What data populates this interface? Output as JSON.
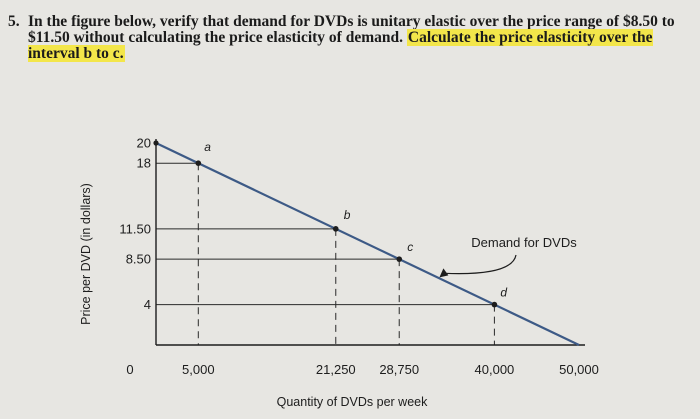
{
  "question": {
    "number": "5.",
    "before": "In the figure below, verify that demand for DVDs is unitary elastic over the price range of $8.50 to $11.50 without calculating the price elasticity of demand. ",
    "highlight": "Calculate the price elasticity over the interval b to c."
  },
  "chart_data": {
    "type": "line",
    "title": "",
    "xlabel": "Quantity of DVDs per week",
    "ylabel": "Price per DVD (in dollars)",
    "xlim": [
      0,
      50000
    ],
    "ylim": [
      0,
      20
    ],
    "x_ticks": [
      {
        "value": 0,
        "label": "0"
      },
      {
        "value": 5000,
        "label": "5,000"
      },
      {
        "value": 21250,
        "label": "21,250"
      },
      {
        "value": 28750,
        "label": "28,750"
      },
      {
        "value": 40000,
        "label": "40,000"
      },
      {
        "value": 50000,
        "label": "50,000"
      }
    ],
    "y_ticks": [
      {
        "value": 4,
        "label": "4"
      },
      {
        "value": 8.5,
        "label": "8.50"
      },
      {
        "value": 11.5,
        "label": "11.50"
      },
      {
        "value": 18,
        "label": "18"
      },
      {
        "value": 20,
        "label": "20"
      }
    ],
    "series": [
      {
        "name": "Demand for DVDs",
        "x": [
          0,
          50000
        ],
        "y": [
          20,
          0
        ]
      }
    ],
    "points": [
      {
        "label": "a",
        "x": 5000,
        "y": 18
      },
      {
        "label": "b",
        "x": 21250,
        "y": 11.5
      },
      {
        "label": "c",
        "x": 28750,
        "y": 8.5
      },
      {
        "label": "d",
        "x": 40000,
        "y": 4
      }
    ],
    "annotation": "Demand for DVDs",
    "colors": {
      "demand_line": "#3d5a86",
      "guide_lines": "#2a2a2a"
    }
  }
}
